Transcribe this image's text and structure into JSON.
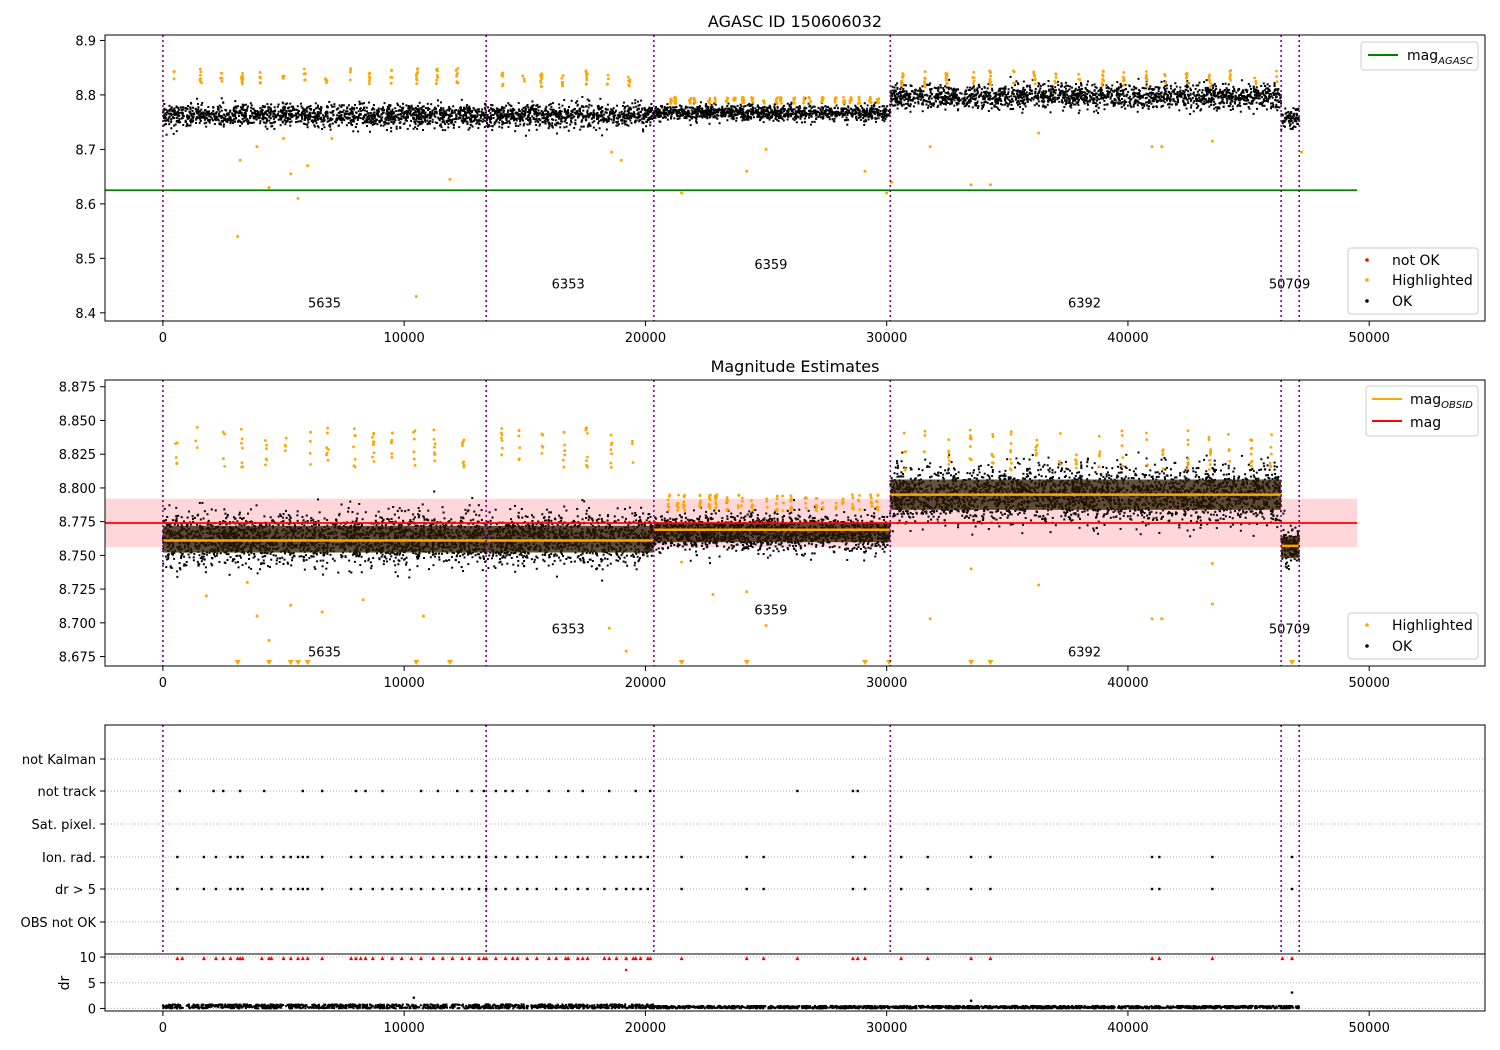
{
  "chart_data": [
    {
      "type": "scatter",
      "title": "AGASC ID 150606032",
      "xlim": [
        -2400,
        54800
      ],
      "ylim": [
        8.385,
        8.91
      ],
      "xticks": [
        0,
        10000,
        20000,
        30000,
        40000,
        50000
      ],
      "xtick_labels": [
        "0",
        "10000",
        "20000",
        "30000",
        "40000",
        "50000"
      ],
      "yticks": [
        8.4,
        8.5,
        8.6,
        8.7,
        8.8,
        8.9
      ],
      "ytick_labels": [
        "8.4",
        "8.5",
        "8.6",
        "8.7",
        "8.8",
        "8.9"
      ],
      "observation_boundaries": [
        0,
        13400,
        20350,
        30150,
        46350,
        47100
      ],
      "observations": [
        {
          "label": "5635",
          "x": 6700,
          "y": 8.41
        },
        {
          "label": "6353",
          "x": 16800,
          "y": 8.445
        },
        {
          "label": "6359",
          "x": 25200,
          "y": 8.48
        },
        {
          "label": "6392",
          "x": 38200,
          "y": 8.41
        },
        {
          "label": "50709",
          "x": 46700,
          "y": 8.445
        }
      ],
      "mag_agasc": {
        "value": 8.625,
        "x_range": [
          -2400,
          49500
        ],
        "color": "#008000"
      },
      "ok_segments": [
        {
          "x0": 0,
          "x1": 13400,
          "center": 8.762,
          "halfwidth": 0.024
        },
        {
          "x0": 13400,
          "x1": 20350,
          "center": 8.762,
          "halfwidth": 0.026
        },
        {
          "x0": 20350,
          "x1": 30150,
          "center": 8.767,
          "halfwidth": 0.017
        },
        {
          "x0": 30150,
          "x1": 46350,
          "center": 8.797,
          "halfwidth": 0.026
        },
        {
          "x0": 46350,
          "x1": 47100,
          "center": 8.758,
          "halfwidth": 0.02
        }
      ],
      "highlighted_clusters_y": [
        8.835,
        8.83,
        8.835,
        8.83,
        8.835
      ],
      "highlighted_outliers": [
        [
          3100,
          8.54
        ],
        [
          3200,
          8.68
        ],
        [
          4400,
          8.63
        ],
        [
          5300,
          8.655
        ],
        [
          5600,
          8.61
        ],
        [
          6000,
          8.67
        ],
        [
          10500,
          8.43
        ],
        [
          11900,
          8.645
        ],
        [
          18600,
          8.695
        ],
        [
          19000,
          8.68
        ],
        [
          21500,
          8.62
        ],
        [
          24200,
          8.66
        ],
        [
          29100,
          8.66
        ],
        [
          30000,
          8.62
        ],
        [
          30200,
          8.64
        ],
        [
          31800,
          8.705
        ],
        [
          33500,
          8.635
        ],
        [
          34300,
          8.635
        ],
        [
          36300,
          8.73
        ],
        [
          41000,
          8.705
        ],
        [
          41400,
          8.705
        ],
        [
          43500,
          8.715
        ],
        [
          47200,
          8.695
        ],
        [
          5000,
          8.72
        ],
        [
          7000,
          8.72
        ],
        [
          3900,
          8.705
        ],
        [
          25000,
          8.7
        ]
      ],
      "legend_upper": [
        "mag",
        "AGASC"
      ],
      "legend_lower": [
        "not OK",
        "Highlighted",
        "OK"
      ],
      "colors": {
        "ok": "#000000",
        "highlighted": "#ffa500",
        "not_ok": "#ff0000",
        "boundary": "#800080"
      }
    },
    {
      "type": "scatter",
      "title": "Magnitude Estimates",
      "xlim": [
        -2400,
        54800
      ],
      "ylim": [
        8.668,
        8.88
      ],
      "xticks": [
        0,
        10000,
        20000,
        30000,
        40000,
        50000
      ],
      "xtick_labels": [
        "0",
        "10000",
        "20000",
        "30000",
        "40000",
        "50000"
      ],
      "yticks": [
        8.675,
        8.7,
        8.725,
        8.75,
        8.775,
        8.8,
        8.825,
        8.85,
        8.875
      ],
      "ytick_labels": [
        "8.675",
        "8.700",
        "8.725",
        "8.750",
        "8.775",
        "8.800",
        "8.825",
        "8.850",
        "8.875"
      ],
      "observation_boundaries": [
        0,
        13400,
        20350,
        30150,
        46350,
        47100
      ],
      "observations": [
        {
          "label": "5635",
          "x": 6700,
          "y": 8.675
        },
        {
          "label": "6353",
          "x": 16800,
          "y": 8.692
        },
        {
          "label": "6359",
          "x": 25200,
          "y": 8.706
        },
        {
          "label": "6392",
          "x": 38200,
          "y": 8.675
        },
        {
          "label": "50709",
          "x": 46700,
          "y": 8.692
        }
      ],
      "mag": {
        "value": 8.774,
        "band": [
          8.756,
          8.792
        ],
        "x_range": [
          -2400,
          49500
        ],
        "color": "#ff0000"
      },
      "mag_obsid": [
        {
          "x0": 0,
          "x1": 13400,
          "value": 8.761
        },
        {
          "x0": 13400,
          "x1": 20350,
          "value": 8.761
        },
        {
          "x0": 20350,
          "x1": 30150,
          "value": 8.769
        },
        {
          "x0": 30150,
          "x1": 46350,
          "value": 8.795
        },
        {
          "x0": 46350,
          "x1": 47100,
          "value": 8.757
        }
      ],
      "ok_segments": [
        {
          "x0": 0,
          "x1": 13400,
          "center": 8.762,
          "halfwidth": 0.022
        },
        {
          "x0": 13400,
          "x1": 20350,
          "center": 8.762,
          "halfwidth": 0.022
        },
        {
          "x0": 20350,
          "x1": 30150,
          "center": 8.767,
          "halfwidth": 0.016
        },
        {
          "x0": 30150,
          "x1": 46350,
          "center": 8.795,
          "halfwidth": 0.025
        },
        {
          "x0": 46350,
          "x1": 47100,
          "center": 8.756,
          "halfwidth": 0.018
        }
      ],
      "highlighted_clusters_y": [
        8.83,
        8.83,
        8.832,
        8.828,
        8.832
      ],
      "highlighted_outliers": [
        [
          1800,
          8.72
        ],
        [
          3500,
          8.73
        ],
        [
          3900,
          8.705
        ],
        [
          4400,
          8.687
        ],
        [
          5300,
          8.713
        ],
        [
          6600,
          8.708
        ],
        [
          8300,
          8.717
        ],
        [
          10800,
          8.705
        ],
        [
          18500,
          8.696
        ],
        [
          19200,
          8.679
        ],
        [
          21500,
          8.745
        ],
        [
          22800,
          8.721
        ],
        [
          24200,
          8.723
        ],
        [
          25000,
          8.698
        ],
        [
          31800,
          8.703
        ],
        [
          33500,
          8.74
        ],
        [
          36300,
          8.728
        ],
        [
          41000,
          8.703
        ],
        [
          41400,
          8.703
        ],
        [
          43500,
          8.714
        ],
        [
          43500,
          8.744
        ]
      ],
      "clipped_markers_x": [
        3100,
        4400,
        5300,
        5600,
        6000,
        10500,
        11900,
        21500,
        24200,
        29100,
        30100,
        33500,
        34300,
        46800
      ],
      "legend_upper": [
        "mag",
        "OBSID",
        "mag"
      ],
      "legend_lower": [
        "Highlighted",
        "OK"
      ],
      "colors": {
        "ok": "#000000",
        "highlighted": "#ffa500",
        "mag": "#ff0000",
        "mag_obsid": "#ffa500",
        "band": "#ffd6d9"
      }
    },
    {
      "type": "scatter",
      "title": "",
      "xlim": [
        -2400,
        54800
      ],
      "categories": [
        "not Kalman",
        "not track",
        "Sat. pixel.",
        "Ion. rad.",
        "dr > 5",
        "OBS not OK"
      ],
      "flags": {
        "not track": [
          700,
          2100,
          2500,
          3200,
          4200,
          5800,
          6600,
          8000,
          8400,
          9100,
          10700,
          11400,
          12200,
          12800,
          13300,
          13800,
          14200,
          14500,
          15100,
          16000,
          16800,
          17400,
          18500,
          19600,
          20200,
          26300,
          28600,
          28800
        ],
        "Ion. rad.": [
          600,
          1700,
          2200,
          2800,
          3100,
          3300,
          4100,
          4500,
          5000,
          5300,
          5600,
          5800,
          6000,
          6600,
          7800,
          8200,
          8700,
          9100,
          9500,
          9900,
          10300,
          10700,
          11200,
          11600,
          12000,
          12400,
          12700,
          13100,
          13400,
          13800,
          14200,
          14700,
          15100,
          15500,
          16300,
          16700,
          17200,
          17600,
          18300,
          18800,
          19200,
          19500,
          19800,
          20100,
          21500,
          24200,
          24900,
          28600,
          29100,
          30600,
          31700,
          33500,
          34300,
          41000,
          41300,
          43500,
          46800
        ],
        "dr > 5": [
          600,
          1700,
          2200,
          2800,
          3100,
          3300,
          4100,
          4500,
          5000,
          5300,
          5600,
          5800,
          6000,
          6600,
          7800,
          8200,
          8700,
          9100,
          9500,
          9900,
          10300,
          10700,
          11200,
          11600,
          12000,
          12400,
          12700,
          13100,
          13400,
          13800,
          14200,
          14700,
          15100,
          15500,
          16300,
          16700,
          17200,
          17600,
          18300,
          18800,
          19200,
          19500,
          19800,
          20100,
          21500,
          24200,
          24900,
          28600,
          29100,
          30600,
          31700,
          33500,
          34300,
          41000,
          41300,
          43500,
          46800
        ]
      },
      "observation_boundaries": [
        0,
        13400,
        20350,
        30150,
        46350,
        47100
      ]
    },
    {
      "type": "scatter",
      "title": "",
      "xlim": [
        -2400,
        54800
      ],
      "ylim": [
        -0.5,
        10.6
      ],
      "ylabel": "dr",
      "xticks": [
        0,
        10000,
        20000,
        30000,
        40000,
        50000
      ],
      "xtick_labels": [
        "0",
        "10000",
        "20000",
        "30000",
        "40000",
        "50000"
      ],
      "yticks": [
        0,
        5,
        10
      ],
      "ytick_labels": [
        "0",
        "5",
        "10"
      ],
      "observation_boundaries": [
        0,
        13400,
        20350,
        30150,
        46350,
        47100
      ],
      "segments_dr_max": [
        0.8,
        0.8,
        0.5,
        0.5,
        0.5
      ],
      "red_markers_x": [
        600,
        800,
        1700,
        2200,
        2500,
        2800,
        3100,
        3200,
        3300,
        4100,
        4400,
        4500,
        5000,
        5300,
        5600,
        5800,
        6000,
        6600,
        7800,
        8000,
        8200,
        8400,
        8700,
        9100,
        9500,
        9900,
        10300,
        10700,
        11200,
        11600,
        12000,
        12400,
        12700,
        13100,
        13300,
        13400,
        13800,
        14200,
        14500,
        14700,
        15100,
        15500,
        16000,
        16300,
        16700,
        16800,
        17200,
        17400,
        17600,
        18300,
        18500,
        18800,
        19200,
        19500,
        19600,
        19800,
        20100,
        20200,
        21500,
        24200,
        24900,
        26300,
        28600,
        28800,
        29100,
        30600,
        31700,
        33500,
        34300,
        41000,
        41300,
        43500,
        46400,
        46800
      ],
      "red_markers_y": 9.8,
      "extra_points": [
        [
          19200,
          7.5
        ],
        [
          10400,
          2.1
        ],
        [
          46800,
          3.1
        ],
        [
          33500,
          1.5
        ]
      ],
      "colors": {
        "ok": "#000000",
        "flag": "#ff0000"
      }
    }
  ]
}
